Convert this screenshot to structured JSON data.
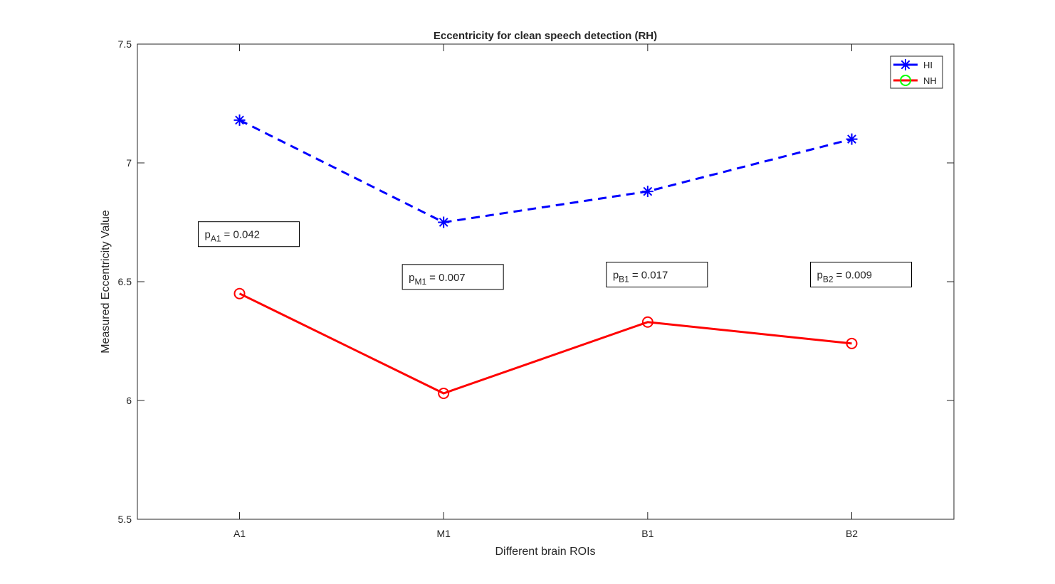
{
  "chart_data": {
    "type": "line",
    "title": "Eccentricity for clean speech detection (RH)",
    "xlabel": "Different brain ROIs",
    "ylabel": "Measured Eccentricity Value",
    "categories": [
      "A1",
      "M1",
      "B1",
      "B2"
    ],
    "ylim": [
      5.5,
      7.5
    ],
    "yticks": [
      "5.5",
      "6",
      "6.5",
      "7",
      "7.5"
    ],
    "grid": false,
    "legend_position": "top-right",
    "series": [
      {
        "name": "HI",
        "values": [
          7.18,
          6.75,
          6.88,
          7.1
        ],
        "color": "#0000ff",
        "line": "dashed",
        "marker": "asterisk"
      },
      {
        "name": "NH",
        "values": [
          6.45,
          6.03,
          6.33,
          6.24
        ],
        "color": "#ff0000",
        "line": "solid",
        "marker": "circle"
      }
    ],
    "annotations": [
      {
        "p": "p",
        "sub": "A1",
        "value": "0.042",
        "category": "A1",
        "y": 6.7
      },
      {
        "p": "p",
        "sub": "M1",
        "value": "0.007",
        "category": "M1",
        "y": 6.52
      },
      {
        "p": "p",
        "sub": "B1",
        "value": "0.017",
        "category": "B1",
        "y": 6.53
      },
      {
        "p": "p",
        "sub": "B2",
        "value": "0.009",
        "category": "B2",
        "y": 6.53
      }
    ],
    "legend_marker_color_NH": "#00ff00"
  }
}
